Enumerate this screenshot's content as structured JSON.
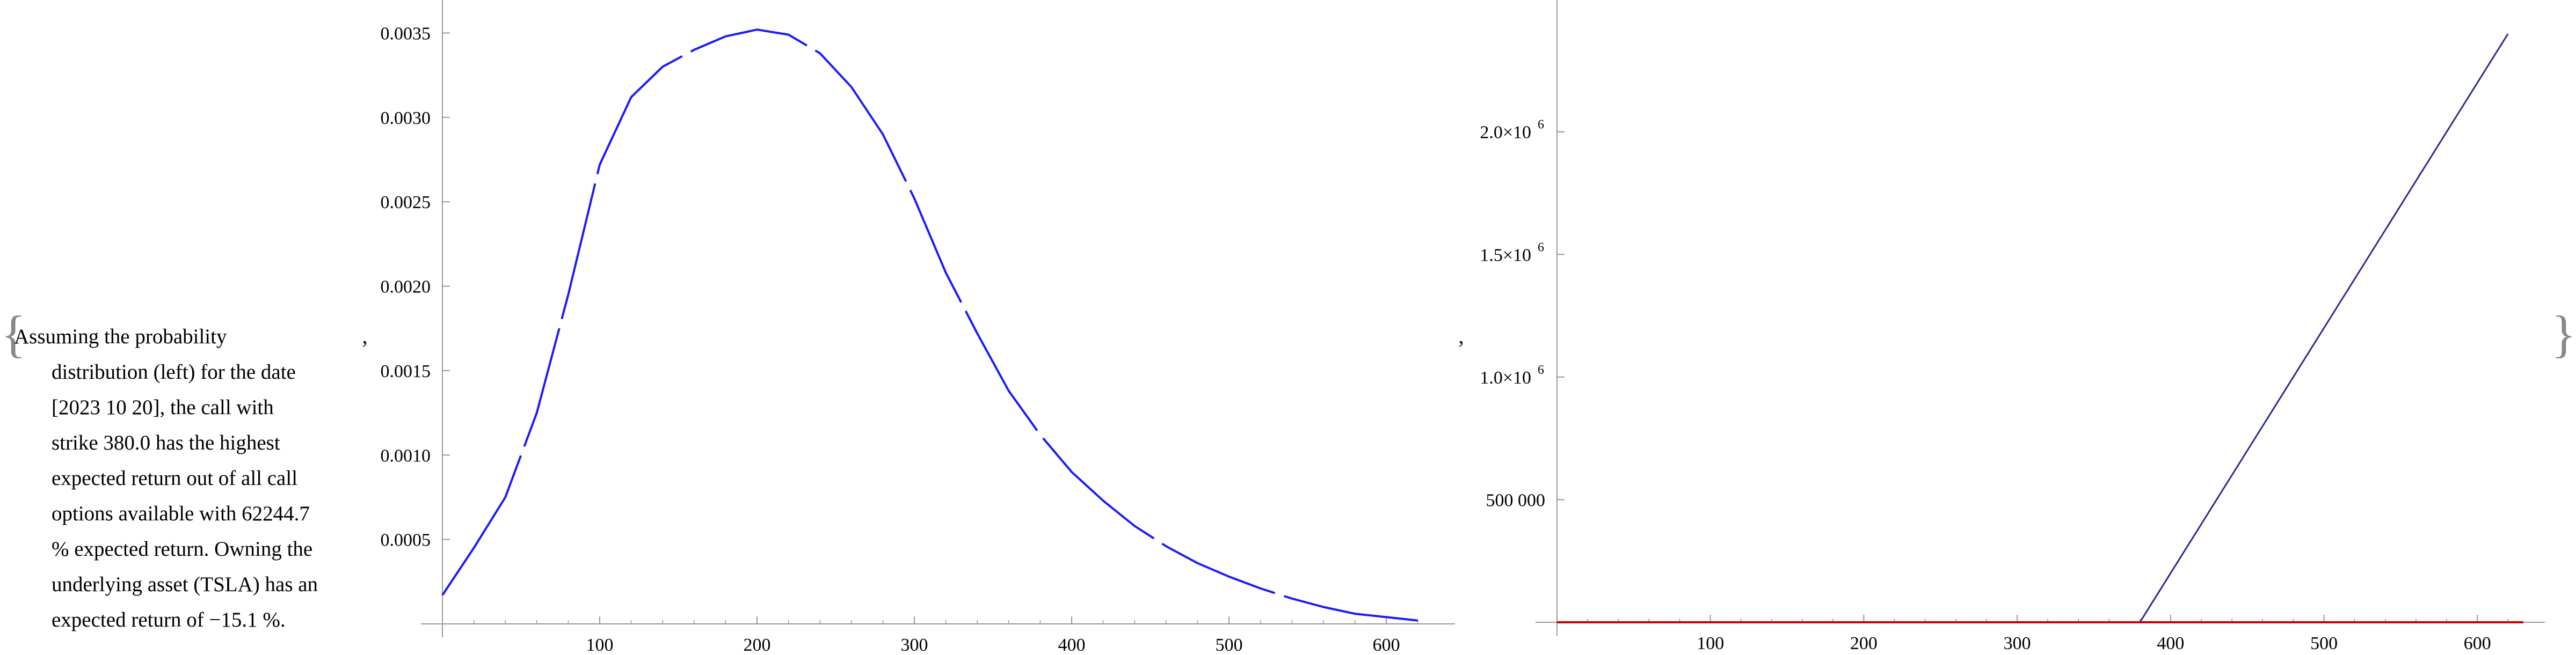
{
  "text": {
    "brace_open": "{",
    "brace_close": "}",
    "separator": ",",
    "description_lines": [
      "Assuming the probability",
      "distribution (left) for the date",
      "[2023 10 20], the call with",
      "strike 380.0 has the highest",
      "expected return out of all call",
      "options available with 62244.7",
      "% expected return. Owning the",
      "underlying asset (TSLA) has an",
      "expected return of −15.1 %."
    ]
  },
  "colors": {
    "density": "#1a1aff",
    "payoff": "#2b2b8c",
    "zero_line": "#cc0000",
    "axis": "#999999"
  },
  "chart_data": [
    {
      "type": "line",
      "title": "",
      "xlabel": "",
      "ylabel": "",
      "xlim": [
        0,
        630
      ],
      "ylim": [
        0,
        0.0036
      ],
      "x_ticks": [
        100,
        200,
        300,
        400,
        500,
        600
      ],
      "x_tick_labels": [
        "100",
        "200",
        "300",
        "400",
        "500",
        "600"
      ],
      "y_ticks": [
        0.0005,
        0.001,
        0.0015,
        0.002,
        0.0025,
        0.003,
        0.0035
      ],
      "y_tick_labels": [
        "0.0005",
        "0.0010",
        "0.0015",
        "0.0020",
        "0.0025",
        "0.0030",
        "0.0035"
      ],
      "series": [
        {
          "line_style": "solid with gaps",
          "x": [
            0,
            20,
            40,
            60,
            80,
            100,
            120,
            140,
            160,
            180,
            200,
            220,
            240,
            260,
            280,
            300,
            320,
            340,
            360,
            380,
            400,
            420,
            440,
            460,
            480,
            500,
            520,
            540,
            560,
            580,
            600,
            620
          ],
          "y": [
            0.00017,
            0.00045,
            0.00075,
            0.00125,
            0.00195,
            0.00272,
            0.00312,
            0.0033,
            0.0034,
            0.00348,
            0.00352,
            0.00349,
            0.00338,
            0.00318,
            0.0029,
            0.00252,
            0.00208,
            0.00172,
            0.00138,
            0.00112,
            0.0009,
            0.00073,
            0.00058,
            0.00046,
            0.00036,
            0.00028,
            0.00021,
            0.00015,
            0.0001,
            6e-05,
            4e-05,
            2e-05
          ]
        }
      ]
    },
    {
      "type": "line",
      "title": "",
      "xlabel": "",
      "ylabel": "",
      "xlim": [
        0,
        630
      ],
      "ylim": [
        0,
        2450000
      ],
      "x_ticks": [
        100,
        200,
        300,
        400,
        500,
        600
      ],
      "x_tick_labels": [
        "100",
        "200",
        "300",
        "400",
        "500",
        "600"
      ],
      "y_ticks": [
        500000,
        1000000,
        1500000,
        2000000
      ],
      "y_tick_labels": [
        "500 000",
        "1.0×10",
        "1.5×10",
        "2.0×10"
      ],
      "y_tick_exponents": [
        "",
        "6",
        "6",
        "6"
      ],
      "series": [
        {
          "x": [
            0,
            380,
            620
          ],
          "y": [
            0,
            0,
            2400000
          ]
        },
        {
          "x": [
            0,
            630
          ],
          "y": [
            0,
            0
          ]
        }
      ]
    }
  ]
}
